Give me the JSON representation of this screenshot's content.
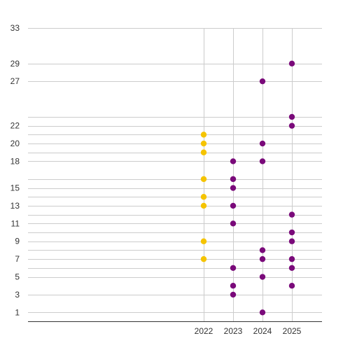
{
  "chart_data": {
    "type": "scatter",
    "x_categories": [
      "2022",
      "2023",
      "2024",
      "2025"
    ],
    "y_tick_labels": [
      1,
      3,
      5,
      7,
      9,
      11,
      13,
      15,
      18,
      20,
      22,
      27,
      29,
      33
    ],
    "y_gridlines": [
      1,
      3,
      5,
      6,
      7,
      8,
      9,
      10,
      11,
      12,
      13,
      14,
      15,
      16,
      18,
      19,
      20,
      21,
      22,
      23,
      27,
      29,
      33
    ],
    "ylim": [
      0,
      33
    ],
    "grid": true,
    "legend": "none",
    "series": [
      {
        "color": "#f5c400",
        "points": [
          {
            "x": "2022",
            "y": 7
          },
          {
            "x": "2022",
            "y": 9
          },
          {
            "x": "2022",
            "y": 13
          },
          {
            "x": "2022",
            "y": 14
          },
          {
            "x": "2022",
            "y": 16
          },
          {
            "x": "2022",
            "y": 19
          },
          {
            "x": "2022",
            "y": 20
          },
          {
            "x": "2022",
            "y": 21
          }
        ]
      },
      {
        "color": "#7a0a7a",
        "points": [
          {
            "x": "2023",
            "y": 3
          },
          {
            "x": "2023",
            "y": 4
          },
          {
            "x": "2023",
            "y": 6
          },
          {
            "x": "2023",
            "y": 11
          },
          {
            "x": "2023",
            "y": 13
          },
          {
            "x": "2023",
            "y": 15
          },
          {
            "x": "2023",
            "y": 16
          },
          {
            "x": "2023",
            "y": 18
          },
          {
            "x": "2024",
            "y": 1
          },
          {
            "x": "2024",
            "y": 5
          },
          {
            "x": "2024",
            "y": 7
          },
          {
            "x": "2024",
            "y": 8
          },
          {
            "x": "2024",
            "y": 18
          },
          {
            "x": "2024",
            "y": 20
          },
          {
            "x": "2024",
            "y": 27
          },
          {
            "x": "2025",
            "y": 4
          },
          {
            "x": "2025",
            "y": 6
          },
          {
            "x": "2025",
            "y": 7
          },
          {
            "x": "2025",
            "y": 9
          },
          {
            "x": "2025",
            "y": 10
          },
          {
            "x": "2025",
            "y": 12
          },
          {
            "x": "2025",
            "y": 22
          },
          {
            "x": "2025",
            "y": 23
          },
          {
            "x": "2025",
            "y": 29
          }
        ]
      }
    ]
  }
}
